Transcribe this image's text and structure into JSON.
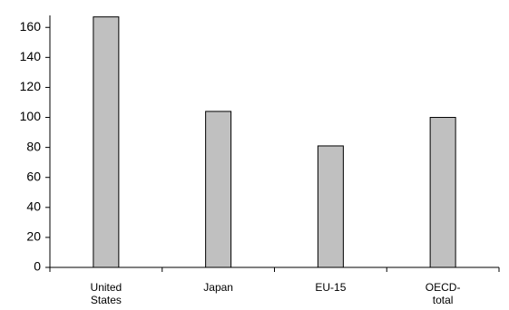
{
  "chart_data": {
    "type": "bar",
    "categories": [
      "United States",
      "Japan",
      "EU-15",
      "OECD-total"
    ],
    "values": [
      167,
      104,
      81,
      100
    ],
    "color": "#c0c0c0",
    "ylim": [
      0,
      168
    ],
    "yticks": [
      0,
      20,
      40,
      60,
      80,
      100,
      120,
      140,
      160
    ],
    "grid": false
  }
}
